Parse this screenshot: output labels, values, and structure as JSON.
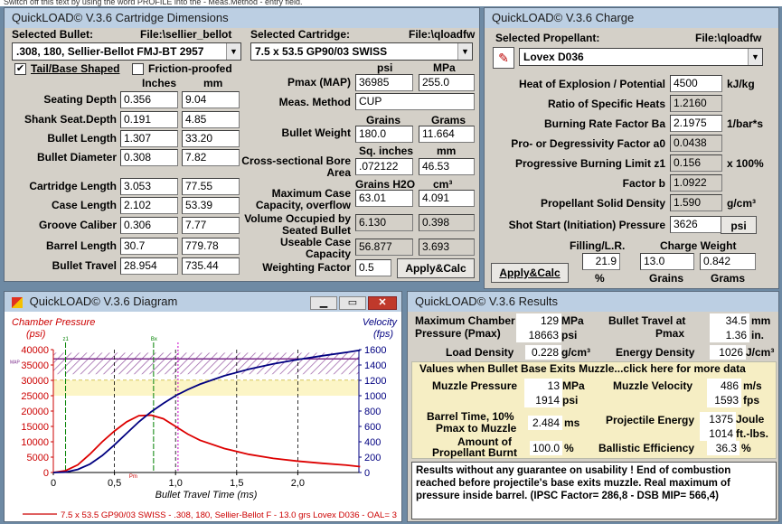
{
  "top_strip": "Switch off this text by using the word PROFILE into the - Meas.Method - entry field.",
  "dims": {
    "title": "QuickLOAD© V.3.6 Cartridge Dimensions",
    "selected_bullet_label": "Selected Bullet:",
    "bullet_file": "File:\\sellier_bellot",
    "bullet_value": ".308, 180, Sellier-Bellot FMJ-BT 2957",
    "selected_cartridge_label": "Selected Cartridge:",
    "cartridge_file": "File:\\qloadfw",
    "cartridge_value": "7.5 x 53.5 GP90/03 SWISS",
    "tail_label": "Tail/Base Shaped",
    "friction_label": "Friction-proofed",
    "inches": "Inches",
    "mm": "mm",
    "rows": [
      {
        "label": "Seating Depth",
        "in": "0.356",
        "mm": "9.04"
      },
      {
        "label": "Shank Seat.Depth",
        "in": "0.191",
        "mm": "4.85"
      },
      {
        "label": "Bullet Length",
        "in": "1.307",
        "mm": "33.20"
      },
      {
        "label": "Bullet Diameter",
        "in": "0.308",
        "mm": "7.82"
      },
      {
        "label": "Cartridge Length",
        "in": "3.053",
        "mm": "77.55"
      },
      {
        "label": "Case Length",
        "in": "2.102",
        "mm": "53.39"
      },
      {
        "label": "Groove Caliber",
        "in": "0.306",
        "mm": "7.77"
      },
      {
        "label": "Barrel Length",
        "in": "30.7",
        "mm": "779.78"
      },
      {
        "label": "Bullet Travel",
        "in": "28.954",
        "mm": "735.44"
      }
    ],
    "psi_hdr": "psi",
    "mpa_hdr": "MPa",
    "pmax_label": "Pmax (MAP)",
    "pmax_psi": "36985",
    "pmax_mpa": "255.0",
    "meas_label": "Meas. Method",
    "meas_value": "CUP",
    "grains_hdr": "Grains",
    "grams_hdr": "Grams",
    "bw_label": "Bullet Weight",
    "bw_grains": "180.0",
    "bw_grams": "11.664",
    "sq_in_hdr": "Sq. inches",
    "mm2_hdr": "mm",
    "csb_label1": "Cross-sectional Bore",
    "csb_label2": "Area",
    "csb_in": ".072122",
    "csb_mm": "46.53",
    "grains_h2o_hdr": "Grains H2O",
    "cm3_hdr": "cm³",
    "mcc_label1": "Maximum Case",
    "mcc_label2": "Capacity, overflow",
    "mcc_grains": "63.01",
    "mcc_cm3": "4.091",
    "vos_label1": "Volume Occupied by",
    "vos_label2": "Seated Bullet",
    "vos_grains": "6.130",
    "vos_cm3": "0.398",
    "ucc_label1": "Useable Case",
    "ucc_label2": "Capacity",
    "ucc_grains": "56.877",
    "ucc_cm3": "3.693",
    "wf_label": "Weighting Factor",
    "wf_value": "0.5",
    "apply_label": "Apply&Calc"
  },
  "charge": {
    "title": "QuickLOAD© V.3.6 Charge",
    "sel_prop_label": "Selected Propellant:",
    "prop_file": "File:\\qloadfw",
    "prop_value": "Lovex D036",
    "rows": [
      {
        "label": "Heat of Explosion / Potential",
        "value": "4500",
        "unit": "kJ/kg"
      },
      {
        "label": "Ratio of Specific Heats",
        "value": "1.2160",
        "unit": ""
      },
      {
        "label": "Burning Rate Factor  Ba",
        "value": "2.1975",
        "unit": "1/bar*s"
      },
      {
        "label": "Pro- or Degressivity Factor  a0",
        "value": "0.0438",
        "unit": ""
      },
      {
        "label": "Progressive Burning Limit z1",
        "value": "0.156",
        "unit": "x 100%"
      },
      {
        "label": "Factor  b",
        "value": "1.0922",
        "unit": ""
      },
      {
        "label": "Propellant Solid Density",
        "value": "1.590",
        "unit": "g/cm³"
      },
      {
        "label": "Shot Start (Initiation) Pressure",
        "value": "3626",
        "unit": ""
      }
    ],
    "psi_btn": "psi",
    "filling_label": "Filling/L.R.",
    "filling_value": "21.9",
    "pct": "%",
    "cw_label": "Charge Weight",
    "cw_grains": "13.0",
    "cw_grams": "0.842",
    "grains_lbl": "Grains",
    "grams_lbl": "Grams",
    "apply_label": "Apply&Calc"
  },
  "diagram": {
    "title": "QuickLOAD© V.3.6 Diagram",
    "left_title": "Chamber Pressure",
    "left_unit": "(psi)",
    "right_title": "Velocity",
    "right_unit": "(fps)",
    "xlabel": "Bullet Travel Time (ms)",
    "legend": "7.5 x 53.5 GP90/03 SWISS - .308, 180, Sellier-Bellot F - 13.0 grs Lovex D036 - OAL= 3",
    "map_label": "MAP",
    "pm_label": "Pm",
    "z1_label": "z1",
    "bx_label": "Bx"
  },
  "chart_data": {
    "type": "line",
    "title": "",
    "xlabel": "Bullet Travel Time (ms)",
    "ylabel": "Chamber Pressure (psi)",
    "y2label": "Velocity (fps)",
    "xlim": [
      0,
      2.5
    ],
    "ylim": [
      0,
      40000
    ],
    "y2lim": [
      0,
      1600
    ],
    "xticks": [
      "0",
      "0,5",
      "1,0",
      "1,5",
      "2,0"
    ],
    "yticks": [
      "0",
      "5000",
      "10000",
      "15000",
      "20000",
      "25000",
      "30000",
      "35000",
      "40000"
    ],
    "y2ticks": [
      "0",
      "200",
      "400",
      "600",
      "800",
      "1000",
      "1200",
      "1400",
      "1600"
    ],
    "series": [
      {
        "name": "Chamber Pressure",
        "axis": "left",
        "color": "#dd0000",
        "x": [
          0,
          0.1,
          0.2,
          0.3,
          0.4,
          0.5,
          0.6,
          0.7,
          0.8,
          0.9,
          1.0,
          1.1,
          1.2,
          1.4,
          1.6,
          1.8,
          2.0,
          2.2,
          2.4,
          2.51
        ],
        "y": [
          0,
          600,
          2500,
          6000,
          10000,
          13500,
          16500,
          18500,
          18663,
          17500,
          15000,
          12500,
          10500,
          7800,
          5900,
          4600,
          3700,
          3000,
          2400,
          1914
        ]
      },
      {
        "name": "Velocity",
        "axis": "right",
        "color": "#000080",
        "x": [
          0,
          0.1,
          0.2,
          0.3,
          0.4,
          0.5,
          0.6,
          0.7,
          0.8,
          0.9,
          1.0,
          1.1,
          1.2,
          1.4,
          1.6,
          1.8,
          2.0,
          2.2,
          2.4,
          2.51
        ],
        "y": [
          0,
          5,
          40,
          110,
          220,
          360,
          510,
          660,
          790,
          900,
          1000,
          1080,
          1150,
          1260,
          1345,
          1415,
          1470,
          1520,
          1565,
          1593
        ]
      }
    ]
  },
  "results": {
    "title": "QuickLOAD© V.3.6 Results",
    "mcp_label1": "Maximum Chamber",
    "mcp_label2": "Pressure (Pmax)",
    "mcp_mpa": "129",
    "mpa_unit": "MPa",
    "mcp_psi": "18663",
    "psi_unit": "psi",
    "btp_label1": "Bullet Travel at",
    "btp_label2": "Pmax",
    "btp_mm": "34.5",
    "mm_unit": "mm",
    "btp_in": "1.36",
    "in_unit": "in.",
    "ld_label": "Load Density",
    "ld_value": "0.228",
    "ld_unit": "g/cm³",
    "ed_label": "Energy Density",
    "ed_value": "1026",
    "ed_unit": "J/cm³",
    "muzzle_header": "Values when Bullet Base Exits Muzzle...click here for more data",
    "mp_label": "Muzzle Pressure",
    "mp_mpa": "13",
    "mp_psi": "1914",
    "mv_label": "Muzzle Velocity",
    "mv_ms": "486",
    "ms_unit": "m/s",
    "mv_fps": "1593",
    "fps_unit": "fps",
    "bt_label1": "Barrel Time, 10%",
    "bt_label2": "Pmax to Muzzle",
    "bt_value": "2.484",
    "ms2_unit": "ms",
    "pe_label": "Projectile Energy",
    "pe_j": "1375",
    "joule_unit": "Joule",
    "pe_ftlb": "1014",
    "ftlb_unit": "ft.-lbs.",
    "apb_label1": "Amount of",
    "apb_label2": "Propellant Burnt",
    "apb_value": "100.0",
    "pct_unit": "%",
    "be_label": "Ballistic Efficiency",
    "be_value": "36.3",
    "note": "Results without any guarantee on usability !  End of combustion reached before projectile's base exits muzzle.  Real maximum of pressure inside barrel.  (IPSC Factor= 286,8 - DSB MIP= 566,4)"
  }
}
